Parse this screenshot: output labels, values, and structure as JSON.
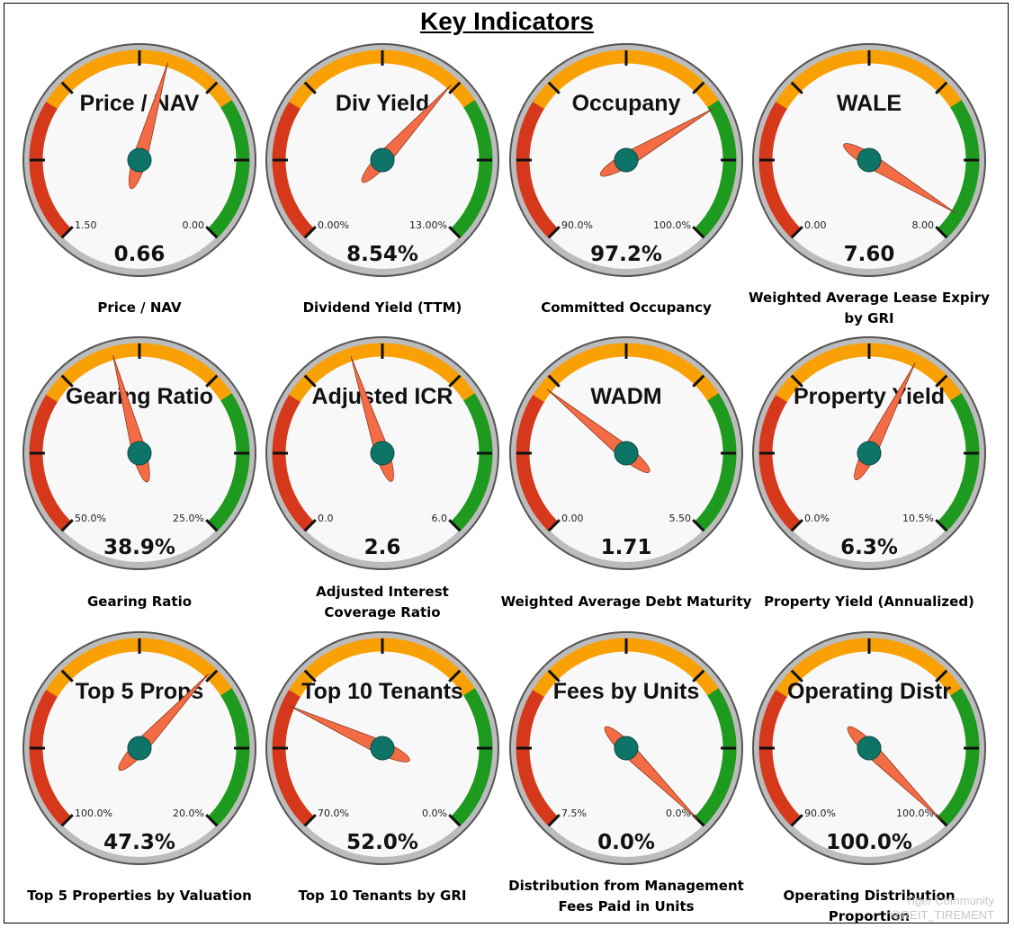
{
  "title": "Key Indicators",
  "colors": {
    "red": "#d6381b",
    "orange": "#f9a005",
    "green": "#1e9a1e",
    "needle": "#f36c45",
    "hub": "#0e7468",
    "face": "#f8f8f8",
    "rim": "#bcbcbc"
  },
  "chart_data": [
    {
      "type": "gauge",
      "title": "Price / NAV",
      "caption": "Price / NAV",
      "value_label": "0.66",
      "value": 0.66,
      "left_label": "1.50",
      "right_label": "0.00",
      "left_value": 1.5,
      "right_value": 0.0
    },
    {
      "type": "gauge",
      "title": "Div Yield",
      "caption": "Dividend Yield (TTM)",
      "value_label": "8.54%",
      "value": 8.54,
      "left_label": "0.00%",
      "right_label": "13.00%",
      "left_value": 0.0,
      "right_value": 13.0
    },
    {
      "type": "gauge",
      "title": "Occupany",
      "caption": "Committed Occupancy",
      "value_label": "97.2%",
      "value": 97.2,
      "left_label": "90.0%",
      "right_label": "100.0%",
      "left_value": 90.0,
      "right_value": 100.0
    },
    {
      "type": "gauge",
      "title": "WALE",
      "caption": "Weighted Average Lease Expiry by GRI",
      "value_label": "7.60",
      "value": 7.6,
      "left_label": "0.00",
      "right_label": "8.00",
      "left_value": 0.0,
      "right_value": 8.0
    },
    {
      "type": "gauge",
      "title": "Gearing Ratio",
      "caption": "Gearing Ratio",
      "value_label": "38.9%",
      "value": 38.9,
      "left_label": "50.0%",
      "right_label": "25.0%",
      "left_value": 50.0,
      "right_value": 25.0
    },
    {
      "type": "gauge",
      "title": "Adjusted ICR",
      "caption": "Adjusted Interest Coverage Ratio",
      "value_label": "2.6",
      "value": 2.6,
      "left_label": "0.0",
      "right_label": "6.0",
      "left_value": 0.0,
      "right_value": 6.0
    },
    {
      "type": "gauge",
      "title": "WADM",
      "caption": "Weighted Average Debt Maturity",
      "value_label": "1.71",
      "value": 1.71,
      "left_label": "0.00",
      "right_label": "5.50",
      "left_value": 0.0,
      "right_value": 5.5
    },
    {
      "type": "gauge",
      "title": "Property Yield",
      "caption": "Property Yield (Annualized)",
      "value_label": "6.3%",
      "value": 6.3,
      "left_label": "0.0%",
      "right_label": "10.5%",
      "left_value": 0.0,
      "right_value": 10.5
    },
    {
      "type": "gauge",
      "title": "Top 5 Props",
      "caption": "Top 5 Properties by Valuation",
      "value_label": "47.3%",
      "value": 47.3,
      "left_label": "100.0%",
      "right_label": "20.0%",
      "left_value": 100.0,
      "right_value": 20.0
    },
    {
      "type": "gauge",
      "title": "Top 10 Tenants",
      "caption": "Top 10 Tenants by GRI",
      "value_label": "52.0%",
      "value": 52.0,
      "left_label": "70.0%",
      "right_label": "0.0%",
      "left_value": 70.0,
      "right_value": 0.0
    },
    {
      "type": "gauge",
      "title": "Fees by Units",
      "caption": "Distribution from Management Fees Paid in Units",
      "value_label": "0.0%",
      "value": 0.0,
      "left_label": "7.5%",
      "right_label": "0.0%",
      "left_value": 7.5,
      "right_value": 0.0
    },
    {
      "type": "gauge",
      "title": "Operating Distr",
      "caption": "Operating Distribution Proportion",
      "value_label": "100.0%",
      "value": 100.0,
      "left_label": "90.0%",
      "right_label": "100.0%",
      "left_value": 90.0,
      "right_value": 100.0
    }
  ],
  "watermark": {
    "line1": "Tiger Community",
    "line2": "@REIT_TIREMENT"
  }
}
